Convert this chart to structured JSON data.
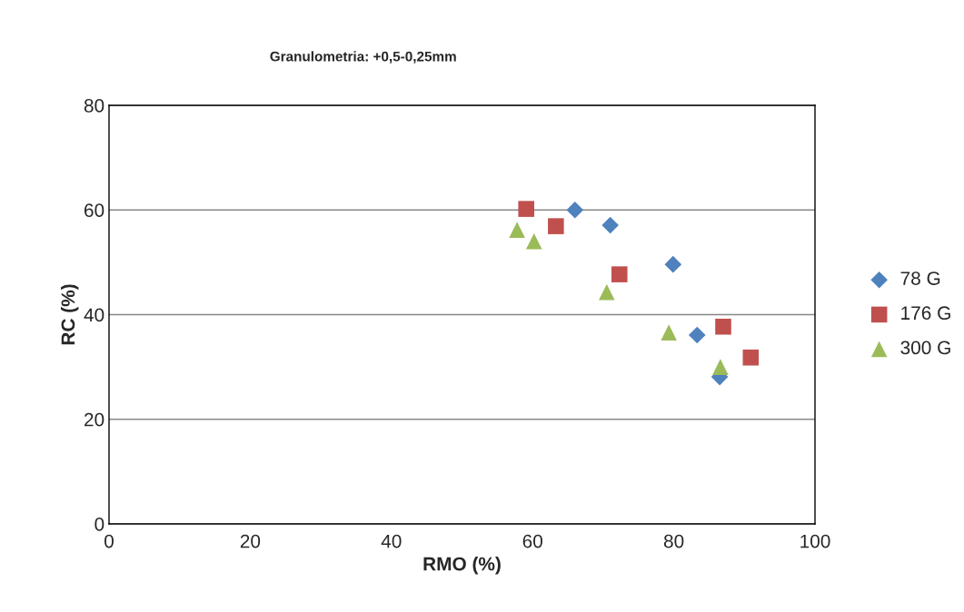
{
  "chart_data": {
    "type": "scatter",
    "title": "Granulometria: +0,5-0,25mm",
    "xlabel": "RMO (%)",
    "ylabel": "RC (%)",
    "xlim": [
      0,
      100
    ],
    "xticks": [
      0,
      20,
      40,
      60,
      80,
      100
    ],
    "ylim": [
      0,
      80
    ],
    "yticks": [
      0,
      20,
      40,
      60,
      80
    ],
    "grid": "y",
    "legend": "right",
    "series": [
      {
        "name": "78 G",
        "color": "#4f81bd",
        "marker": "diamond",
        "x": [
          66.0,
          71.0,
          79.9,
          83.3,
          86.5
        ],
        "values": [
          60.0,
          57.1,
          49.6,
          36.1,
          28.1
        ]
      },
      {
        "name": "176 G",
        "color": "#c0504d",
        "marker": "square",
        "x": [
          59.1,
          63.3,
          72.3,
          87.0,
          90.9
        ],
        "values": [
          60.2,
          56.9,
          47.7,
          37.7,
          31.8
        ]
      },
      {
        "name": "300 G",
        "color": "#9bbb59",
        "marker": "triangle",
        "x": [
          57.8,
          60.2,
          70.5,
          79.3,
          86.6
        ],
        "values": [
          56.2,
          54.0,
          44.3,
          36.6,
          30.0
        ]
      }
    ]
  }
}
